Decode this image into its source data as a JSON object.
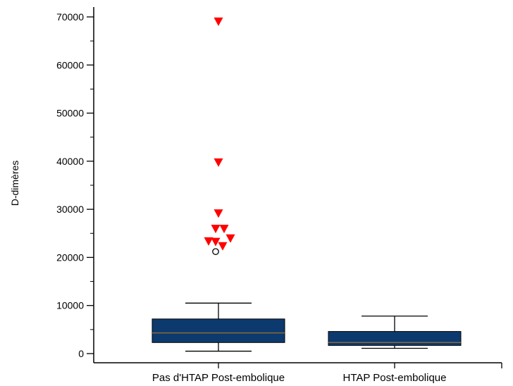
{
  "chart_data": {
    "type": "box",
    "title": "",
    "xlabel": "",
    "ylabel": "D-dimères",
    "ylim": [
      0,
      70000
    ],
    "yticks": [
      0,
      10000,
      20000,
      30000,
      40000,
      50000,
      60000,
      70000
    ],
    "ytick_labels": [
      "0",
      "10000",
      "20000",
      "30000",
      "40000",
      "50000",
      "60000",
      "70000"
    ],
    "grid": false,
    "categories": [
      "Pas d'HTAP Post-embolique",
      "HTAP Post-embolique"
    ],
    "box_color": "#0d3a6e",
    "median_color": "#8a6a3a",
    "outlier_color": "#ff0000",
    "series": [
      {
        "category": "Pas d'HTAP Post-embolique",
        "whisker_low": 500,
        "q1": 2300,
        "median": 4300,
        "q3": 7200,
        "whisker_high": 10500,
        "outside_values": [
          21200
        ],
        "far_out_values": [
          69000,
          39700,
          29100,
          25900,
          25900,
          23900,
          23300,
          23200,
          22300
        ]
      },
      {
        "category": "HTAP Post-embolique",
        "whisker_low": 1100,
        "q1": 1700,
        "median": 2300,
        "q3": 4600,
        "whisker_high": 7800,
        "outside_values": [],
        "far_out_values": []
      }
    ]
  }
}
